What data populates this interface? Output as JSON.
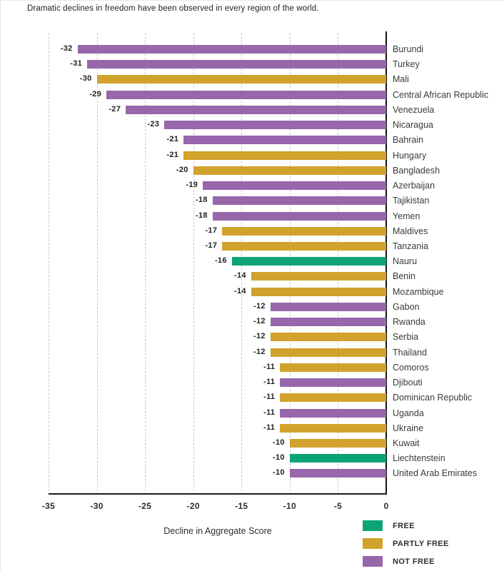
{
  "chart_data": {
    "type": "bar",
    "orientation": "horizontal",
    "title": "Dramatic declines in freedom have been observed in every region of the world.",
    "xlabel": "Decline in Aggregate Score",
    "ylabel": "",
    "xlim": [
      -35,
      0
    ],
    "x_ticks": [
      -35,
      -30,
      -25,
      -20,
      -15,
      -10,
      -5,
      0
    ],
    "grid": "vertical-dashed",
    "legend_position": "bottom-right",
    "status_colors": {
      "FREE": "#0ca377",
      "PARTLY FREE": "#d1a32c",
      "NOT FREE": "#9766ab"
    },
    "legend": [
      {
        "label": "FREE",
        "color": "#0ca377"
      },
      {
        "label": "PARTLY FREE",
        "color": "#d1a32c"
      },
      {
        "label": "NOT FREE",
        "color": "#9766ab"
      }
    ],
    "bars": [
      {
        "country": "Burundi",
        "value": -32,
        "status": "NOT FREE"
      },
      {
        "country": "Turkey",
        "value": -31,
        "status": "NOT FREE"
      },
      {
        "country": "Mali",
        "value": -30,
        "status": "PARTLY FREE"
      },
      {
        "country": "Central African Republic",
        "value": -29,
        "status": "NOT FREE"
      },
      {
        "country": "Venezuela",
        "value": -27,
        "status": "NOT FREE"
      },
      {
        "country": "Nicaragua",
        "value": -23,
        "status": "NOT FREE"
      },
      {
        "country": "Bahrain",
        "value": -21,
        "status": "NOT FREE"
      },
      {
        "country": "Hungary",
        "value": -21,
        "status": "PARTLY FREE"
      },
      {
        "country": "Bangladesh",
        "value": -20,
        "status": "PARTLY FREE"
      },
      {
        "country": "Azerbaijan",
        "value": -19,
        "status": "NOT FREE"
      },
      {
        "country": "Tajikistan",
        "value": -18,
        "status": "NOT FREE"
      },
      {
        "country": "Yemen",
        "value": -18,
        "status": "NOT FREE"
      },
      {
        "country": "Maldives",
        "value": -17,
        "status": "PARTLY FREE"
      },
      {
        "country": "Tanzania",
        "value": -17,
        "status": "PARTLY FREE"
      },
      {
        "country": "Nauru",
        "value": -16,
        "status": "FREE"
      },
      {
        "country": "Benin",
        "value": -14,
        "status": "PARTLY FREE"
      },
      {
        "country": "Mozambique",
        "value": -14,
        "status": "PARTLY FREE"
      },
      {
        "country": "Gabon",
        "value": -12,
        "status": "NOT FREE"
      },
      {
        "country": "Rwanda",
        "value": -12,
        "status": "NOT FREE"
      },
      {
        "country": "Serbia",
        "value": -12,
        "status": "PARTLY FREE"
      },
      {
        "country": "Thailand",
        "value": -12,
        "status": "PARTLY FREE"
      },
      {
        "country": "Comoros",
        "value": -11,
        "status": "PARTLY FREE"
      },
      {
        "country": "Djibouti",
        "value": -11,
        "status": "NOT FREE"
      },
      {
        "country": "Dominican Republic",
        "value": -11,
        "status": "PARTLY FREE"
      },
      {
        "country": "Uganda",
        "value": -11,
        "status": "NOT FREE"
      },
      {
        "country": "Ukraine",
        "value": -11,
        "status": "PARTLY FREE"
      },
      {
        "country": "Kuwait",
        "value": -10,
        "status": "PARTLY FREE"
      },
      {
        "country": "Liechtenstein",
        "value": -10,
        "status": "FREE"
      },
      {
        "country": "United Arab Emirates",
        "value": -10,
        "status": "NOT FREE"
      }
    ]
  }
}
